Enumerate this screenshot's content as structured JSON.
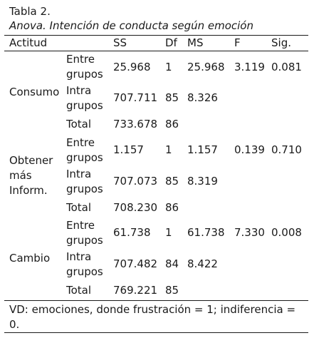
{
  "caption": {
    "number": "Tabla 2.",
    "title": "Anova. Intención de conducta según emoción"
  },
  "table": {
    "headers": [
      "Actitud",
      "SS",
      "Df",
      "MS",
      "F",
      "Sig."
    ],
    "groups": [
      {
        "label": "Consumo",
        "rows": [
          {
            "sub": "Entre grupos",
            "ss": "25.968",
            "df": "1",
            "ms": "25.968",
            "f": "3.119",
            "sig": "0.081"
          },
          {
            "sub": "Intra grupos",
            "ss": "707.711",
            "df": "85",
            "ms": "8.326",
            "f": "",
            "sig": ""
          },
          {
            "sub": "Total",
            "ss": "733.678",
            "df": "86",
            "ms": "",
            "f": "",
            "sig": ""
          }
        ]
      },
      {
        "label": "Obtener más Inform.",
        "rows": [
          {
            "sub": "Entre grupos",
            "ss": "1.157",
            "df": "1",
            "ms": "1.157",
            "f": "0.139",
            "sig": "0.710"
          },
          {
            "sub": "Intra grupos",
            "ss": "707.073",
            "df": "85",
            "ms": "8.319",
            "f": "",
            "sig": ""
          },
          {
            "sub": "Total",
            "ss": "708.230",
            "df": "86",
            "ms": "",
            "f": "",
            "sig": ""
          }
        ]
      },
      {
        "label": "Cambio",
        "rows": [
          {
            "sub": "Entre grupos",
            "ss": "61.738",
            "df": "1",
            "ms": "61.738",
            "f": "7.330",
            "sig": "0.008"
          },
          {
            "sub": "Intra grupos",
            "ss": "707.482",
            "df": "84",
            "ms": "8.422",
            "f": "",
            "sig": ""
          },
          {
            "sub": "Total",
            "ss": "769.221",
            "df": "85",
            "ms": "",
            "f": "",
            "sig": ""
          }
        ]
      }
    ]
  },
  "note": "VD: emociones, donde frustración = 1; indiferencia = 0."
}
